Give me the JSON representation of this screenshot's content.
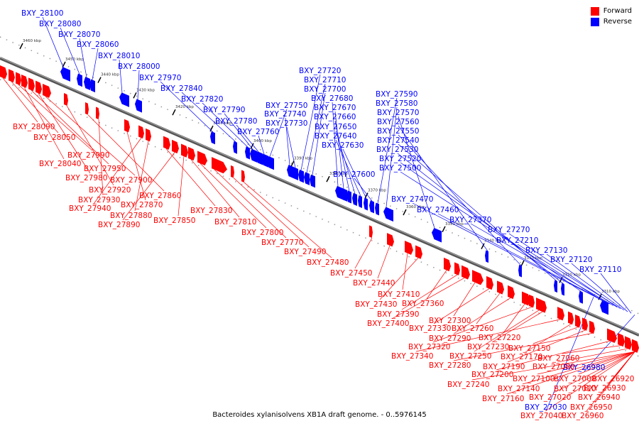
{
  "legend": {
    "forward_label": "Forward",
    "reverse_label": "Reverse",
    "forward_color": "#ff0000",
    "reverse_color": "#0000ff"
  },
  "caption": "Bacteroides xylanisolvens XB1A draft genome. - 0..5976145",
  "ticks": [
    "3460 kbp",
    "3450 kbp",
    "3440 kbp",
    "3430 kbp",
    "3420 kbp",
    "3410 kbp",
    "3400 kbp",
    "3390 kbp",
    "3380 kbp",
    "3370 kbp",
    "3360 kbp",
    "3350 kbp",
    "3340 kbp",
    "3330 kbp",
    "3320 kbp",
    "3310 kbp"
  ],
  "reverse_genes": [
    "BXY_28100",
    "BXY_28080",
    "BXY_28070",
    "BXY_28060",
    "BXY_28010",
    "BXY_28000",
    "BXY_27970",
    "BXY_27840",
    "BXY_27820",
    "BXY_27790",
    "BXY_27780",
    "BXY_27760",
    "BXY_27750",
    "BXY_27740",
    "BXY_27730",
    "BXY_27720",
    "BXY_27710",
    "BXY_27700",
    "BXY_27680",
    "BXY_27670",
    "BXY_27660",
    "BXY_27650",
    "BXY_27640",
    "BXY_27630",
    "BXY_27600",
    "BXY_27590",
    "BXY_27580",
    "BXY_27570",
    "BXY_27560",
    "BXY_27550",
    "BXY_27540",
    "BXY_27530",
    "BXY_27520",
    "BXY_27500",
    "BXY_27470",
    "BXY_27460",
    "BXY_27370",
    "BXY_27270",
    "BXY_27210",
    "BXY_27130",
    "BXY_27120",
    "BXY_27110",
    "BXY_26980",
    "BXY_27030"
  ],
  "forward_genes": [
    "BXY_28090",
    "BXY_28050",
    "BXY_27990",
    "BXY_28040",
    "BXY_27950",
    "BXY_27980",
    "BXY_27900",
    "BXY_27920",
    "BXY_27860",
    "BXY_27930",
    "BXY_27870",
    "BXY_27940",
    "BXY_27880",
    "BXY_27830",
    "BXY_27890",
    "BXY_27850",
    "BXY_27810",
    "BXY_27800",
    "BXY_27770",
    "BXY_27490",
    "BXY_27480",
    "BXY_27450",
    "BXY_27440",
    "BXY_27410",
    "BXY_27430",
    "BXY_27360",
    "BXY_27390",
    "BXY_27400",
    "BXY_27300",
    "BXY_27330",
    "BXY_27260",
    "BXY_27290",
    "BXY_27220",
    "BXY_27320",
    "BXY_27250",
    "BXY_27230",
    "BXY_27340",
    "BXY_27170",
    "BXY_27150",
    "BXY_27190",
    "BXY_27280",
    "BXY_27200",
    "BXY_27060",
    "BXY_27080",
    "BXY_27240",
    "BXY_27100",
    "BXY_27000",
    "BXY_26920",
    "BXY_27140",
    "BXY_27010",
    "BXY_26930",
    "BXY_27020",
    "BXY_26940",
    "BXY_27160",
    "BXY_26950",
    "BXY_27040",
    "BXY_26960"
  ]
}
